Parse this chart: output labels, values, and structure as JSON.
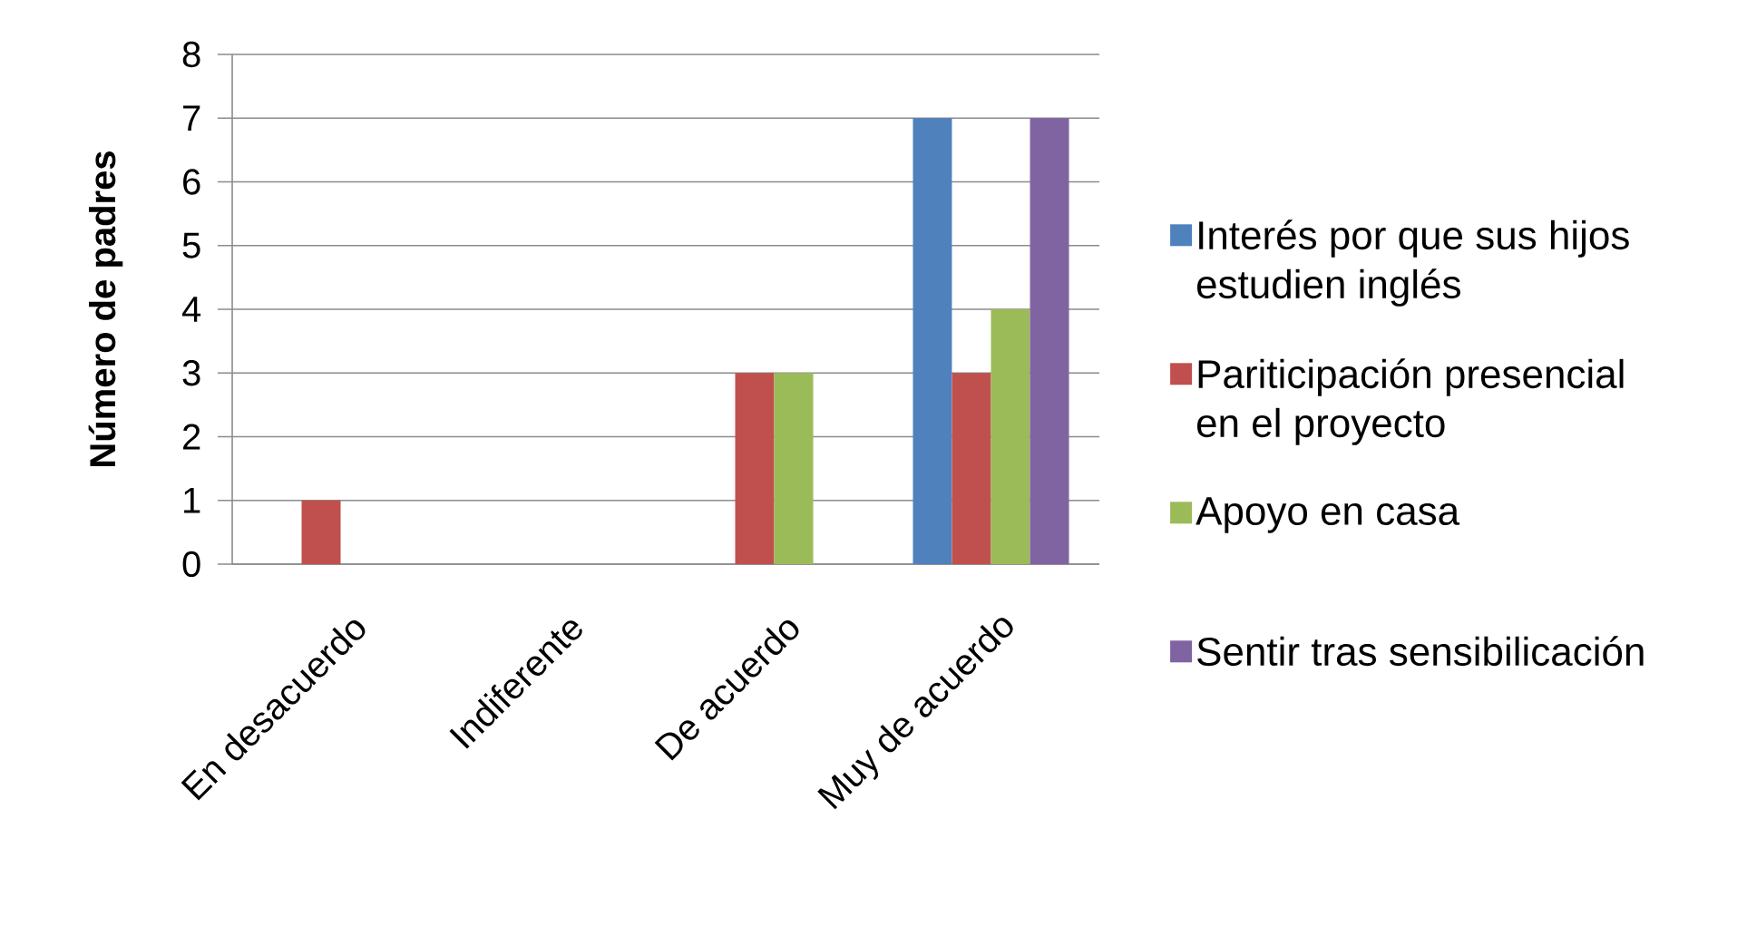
{
  "chart_data": {
    "type": "bar",
    "ylabel": "**Número de padres**",
    "categories": [
      "En desacuerdo",
      "Indiferente",
      "De acuerdo",
      "Muy de acuerdo"
    ],
    "series": [
      {
        "name": "Interés por que sus hijos estudien inglés",
        "color": "#4f81bd",
        "values": [
          0,
          0,
          0,
          7
        ]
      },
      {
        "name": "Pariticipación presencial en el proyecto",
        "color": "#c0504d",
        "values": [
          1,
          0,
          3,
          3
        ]
      },
      {
        "name": "Apoyo en casa",
        "color": "#9bbb59",
        "values": [
          0,
          0,
          3,
          4
        ]
      },
      {
        "name": "Sentir tras sensibilicación",
        "color": "#8064a2",
        "values": [
          0,
          0,
          0,
          7
        ]
      }
    ],
    "ylim": [
      0,
      8
    ],
    "yticks": [
      0,
      1,
      2,
      3,
      4,
      5,
      6,
      7,
      8
    ],
    "grid": "y",
    "legend": "right"
  }
}
